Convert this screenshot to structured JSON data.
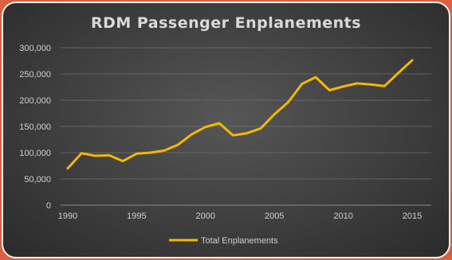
{
  "chart_data": {
    "type": "line",
    "title": "RDM Passenger Enplanements",
    "xlabel": "",
    "ylabel": "",
    "x": [
      1990,
      1991,
      1992,
      1993,
      1994,
      1995,
      1996,
      1997,
      1998,
      1999,
      2000,
      2001,
      2002,
      2003,
      2004,
      2005,
      2006,
      2007,
      2008,
      2009,
      2010,
      2011,
      2012,
      2013,
      2014,
      2015
    ],
    "series": [
      {
        "name": "Total Enplanements",
        "color": "#f5b800",
        "values": [
          70000,
          99000,
          94000,
          95000,
          84000,
          98000,
          100000,
          104000,
          115000,
          135000,
          149000,
          156000,
          133000,
          137000,
          146000,
          173000,
          196000,
          231000,
          244000,
          219000,
          226000,
          232000,
          230000,
          227000,
          252000,
          276000
        ]
      }
    ],
    "xlim": [
      1989,
      2016
    ],
    "ylim": [
      0,
      300000
    ],
    "yticks": [
      0,
      50000,
      100000,
      150000,
      200000,
      250000,
      300000
    ],
    "ytick_labels": [
      "0",
      "50,000",
      "100,000",
      "150,000",
      "200,000",
      "250,000",
      "300,000"
    ],
    "xticks": [
      1990,
      1995,
      2000,
      2005,
      2010,
      2015
    ],
    "xtick_labels": [
      "1990",
      "1995",
      "2000",
      "2005",
      "2010",
      "2015"
    ],
    "grid": true,
    "legend_position": "bottom"
  }
}
